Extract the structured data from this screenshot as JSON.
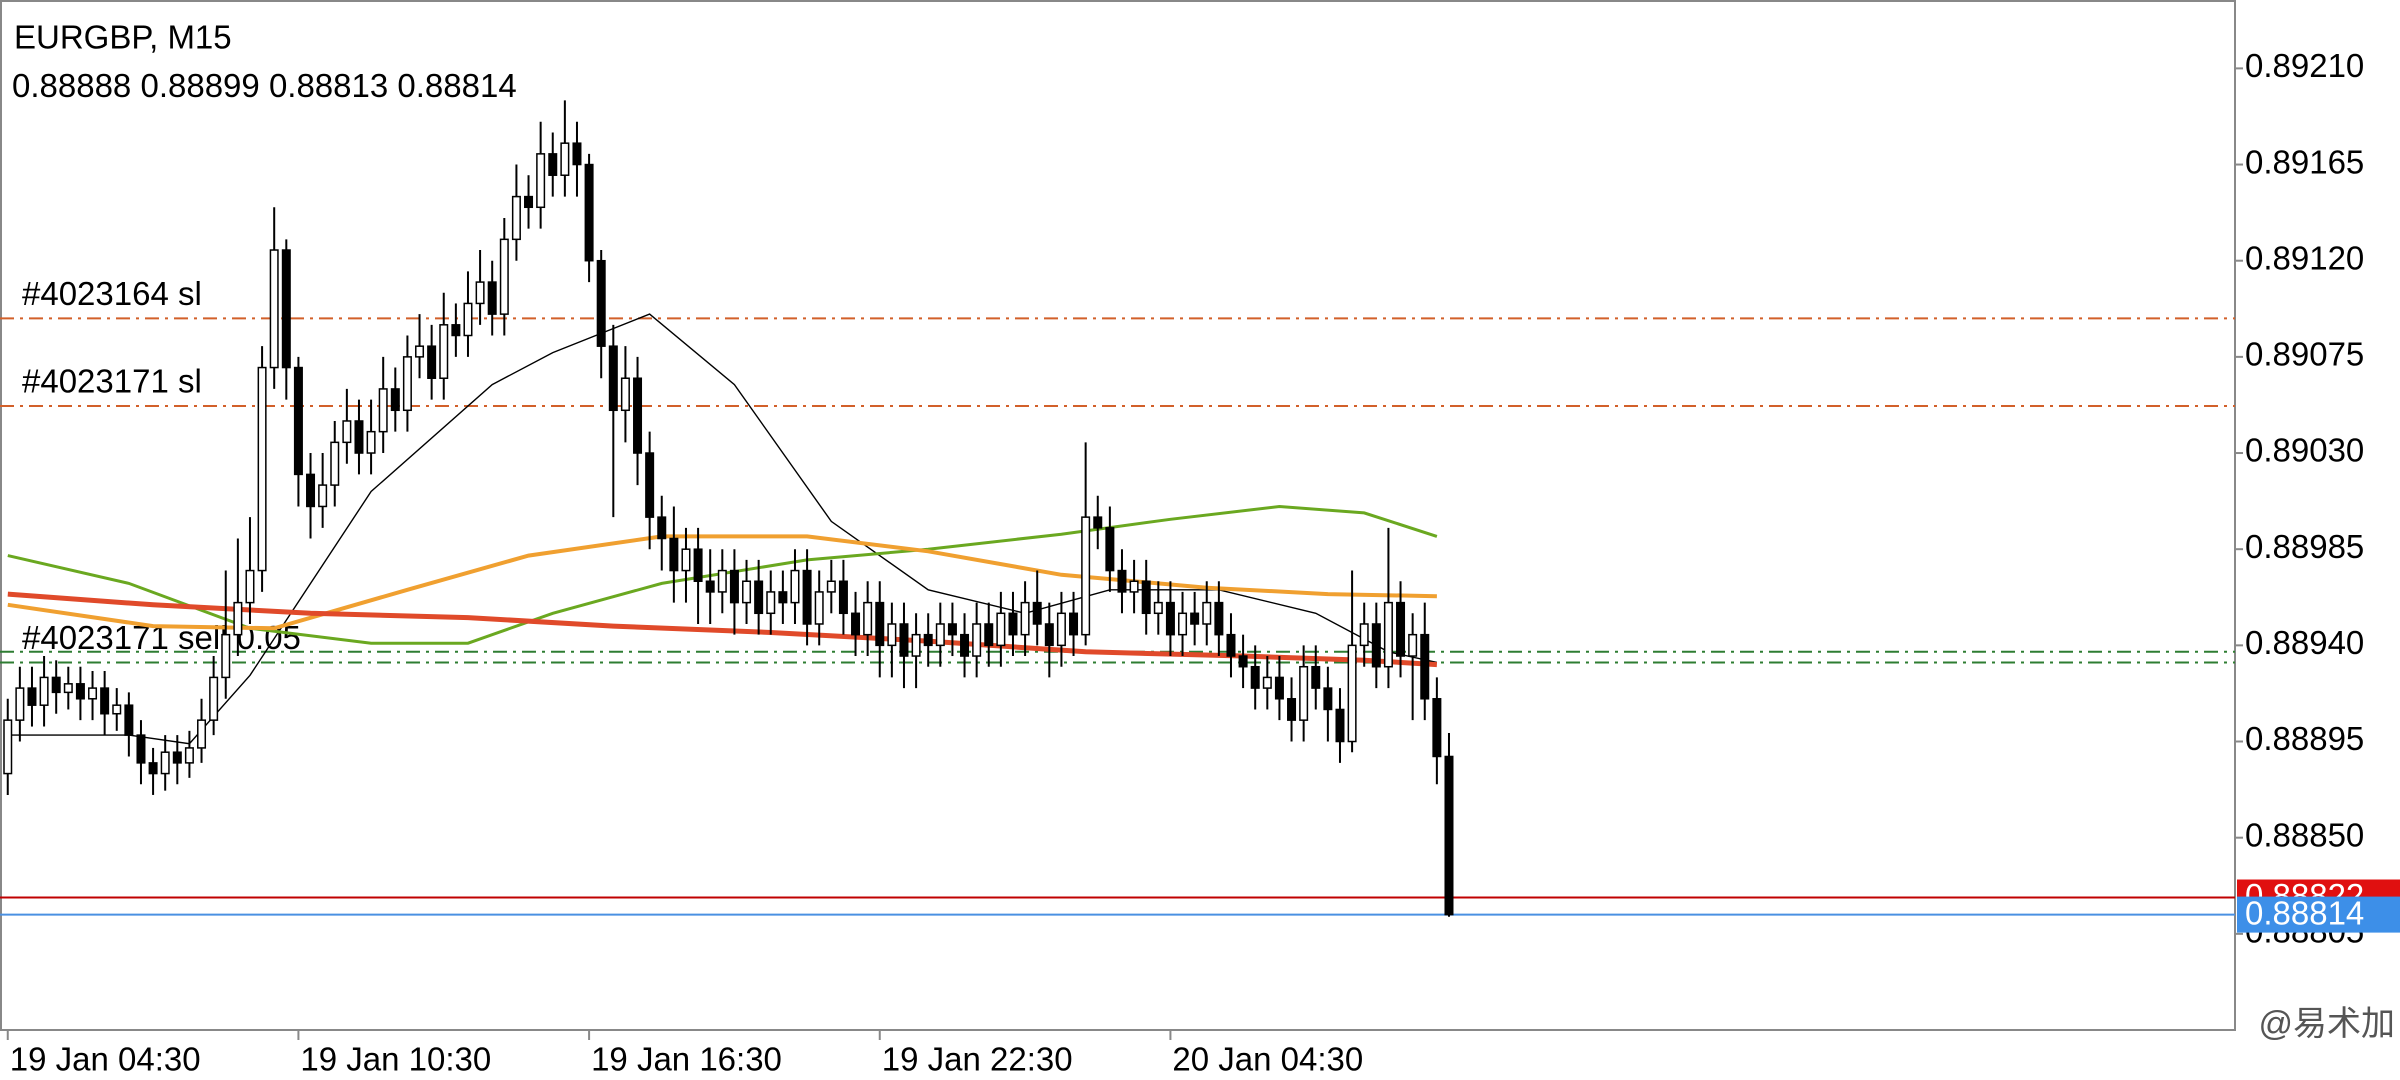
{
  "chart_data": {
    "type": "candlestick",
    "symbol": "EURGBP, M15",
    "ylim": [
      0.8876,
      0.89242
    ],
    "yticks": [
      {
        "value": 0.8921,
        "label": "0.89210"
      },
      {
        "value": 0.89165,
        "label": "0.89165"
      },
      {
        "value": 0.8912,
        "label": "0.89120"
      },
      {
        "value": 0.89075,
        "label": "0.89075"
      },
      {
        "value": 0.8903,
        "label": "0.89030"
      },
      {
        "value": 0.88985,
        "label": "0.88985"
      },
      {
        "value": 0.8894,
        "label": "0.88940"
      },
      {
        "value": 0.88895,
        "label": "0.88895"
      },
      {
        "value": 0.8885,
        "label": "0.88850"
      },
      {
        "value": 0.88805,
        "label": "0.88805"
      }
    ],
    "xlim": [
      -0.64,
      183.9
    ],
    "xticks": [
      {
        "value": 0,
        "label": "19 Jan 04:30"
      },
      {
        "value": 24,
        "label": "19 Jan 10:30"
      },
      {
        "value": 48,
        "label": "19 Jan 16:30"
      },
      {
        "value": 72,
        "label": "19 Jan 22:30"
      },
      {
        "value": 96,
        "label": "20 Jan 04:30"
      }
    ],
    "bull_color": "#ffffff",
    "bear_color": "#000000",
    "ohlc": [
      [
        0.8888,
        0.88915,
        0.8887,
        0.88905
      ],
      [
        0.88905,
        0.8893,
        0.88895,
        0.8892
      ],
      [
        0.8892,
        0.8893,
        0.88902,
        0.88912
      ],
      [
        0.88912,
        0.88935,
        0.88902,
        0.88925
      ],
      [
        0.88925,
        0.88933,
        0.88908,
        0.88918
      ],
      [
        0.88918,
        0.8893,
        0.8891,
        0.88922
      ],
      [
        0.88922,
        0.8893,
        0.88905,
        0.88915
      ],
      [
        0.88915,
        0.88928,
        0.88905,
        0.8892
      ],
      [
        0.8892,
        0.88928,
        0.88898,
        0.88908
      ],
      [
        0.88908,
        0.8892,
        0.889,
        0.88912
      ],
      [
        0.88912,
        0.88918,
        0.88888,
        0.88898
      ],
      [
        0.88898,
        0.88905,
        0.88875,
        0.88885
      ],
      [
        0.88885,
        0.88892,
        0.8887,
        0.8888
      ],
      [
        0.8888,
        0.88898,
        0.88872,
        0.8889
      ],
      [
        0.8889,
        0.88898,
        0.88875,
        0.88885
      ],
      [
        0.88885,
        0.889,
        0.88878,
        0.88892
      ],
      [
        0.88892,
        0.88915,
        0.88885,
        0.88905
      ],
      [
        0.88905,
        0.88935,
        0.88898,
        0.88925
      ],
      [
        0.88925,
        0.88975,
        0.88915,
        0.88945
      ],
      [
        0.88945,
        0.8899,
        0.88935,
        0.8896
      ],
      [
        0.8896,
        0.89,
        0.8895,
        0.88975
      ],
      [
        0.88975,
        0.8908,
        0.88965,
        0.8907
      ],
      [
        0.8907,
        0.89145,
        0.8906,
        0.89125
      ],
      [
        0.89125,
        0.8913,
        0.89055,
        0.8907
      ],
      [
        0.8907,
        0.89075,
        0.89005,
        0.8902
      ],
      [
        0.8902,
        0.8903,
        0.8899,
        0.89005
      ],
      [
        0.89005,
        0.8903,
        0.88995,
        0.89015
      ],
      [
        0.89015,
        0.89045,
        0.89005,
        0.89035
      ],
      [
        0.89035,
        0.8906,
        0.89025,
        0.89045
      ],
      [
        0.89045,
        0.89055,
        0.8902,
        0.8903
      ],
      [
        0.8903,
        0.89055,
        0.8902,
        0.8904
      ],
      [
        0.8904,
        0.89075,
        0.8903,
        0.8906
      ],
      [
        0.8906,
        0.8907,
        0.8904,
        0.8905
      ],
      [
        0.8905,
        0.89085,
        0.8904,
        0.89075
      ],
      [
        0.89075,
        0.89095,
        0.89065,
        0.8908
      ],
      [
        0.8908,
        0.8909,
        0.89055,
        0.89065
      ],
      [
        0.89065,
        0.89105,
        0.89055,
        0.8909
      ],
      [
        0.8909,
        0.891,
        0.89075,
        0.89085
      ],
      [
        0.89085,
        0.89115,
        0.89075,
        0.891
      ],
      [
        0.891,
        0.89125,
        0.8909,
        0.8911
      ],
      [
        0.8911,
        0.8912,
        0.89085,
        0.89095
      ],
      [
        0.89095,
        0.8914,
        0.89085,
        0.8913
      ],
      [
        0.8913,
        0.89165,
        0.8912,
        0.8915
      ],
      [
        0.8915,
        0.8916,
        0.89135,
        0.89145
      ],
      [
        0.89145,
        0.89185,
        0.89135,
        0.8917
      ],
      [
        0.8917,
        0.8918,
        0.8915,
        0.8916
      ],
      [
        0.8916,
        0.89195,
        0.8915,
        0.89175
      ],
      [
        0.89175,
        0.89185,
        0.8915,
        0.89165
      ],
      [
        0.89165,
        0.8917,
        0.8911,
        0.8912
      ],
      [
        0.8912,
        0.89125,
        0.89065,
        0.8908
      ],
      [
        0.8908,
        0.8909,
        0.89,
        0.8905
      ],
      [
        0.8905,
        0.8908,
        0.89035,
        0.89065
      ],
      [
        0.89065,
        0.89075,
        0.89015,
        0.8903
      ],
      [
        0.8903,
        0.8904,
        0.88985,
        0.89
      ],
      [
        0.89,
        0.8901,
        0.88975,
        0.8899
      ],
      [
        0.8899,
        0.89005,
        0.8896,
        0.88975
      ],
      [
        0.88975,
        0.88995,
        0.8896,
        0.88985
      ],
      [
        0.88985,
        0.88995,
        0.8895,
        0.8897
      ],
      [
        0.8897,
        0.88985,
        0.8895,
        0.88965
      ],
      [
        0.88965,
        0.88985,
        0.88955,
        0.88975
      ],
      [
        0.88975,
        0.88985,
        0.88945,
        0.8896
      ],
      [
        0.8896,
        0.8898,
        0.8895,
        0.8897
      ],
      [
        0.8897,
        0.8898,
        0.88945,
        0.88955
      ],
      [
        0.88955,
        0.88975,
        0.88945,
        0.88965
      ],
      [
        0.88965,
        0.88975,
        0.8895,
        0.8896
      ],
      [
        0.8896,
        0.88985,
        0.8895,
        0.88975
      ],
      [
        0.88975,
        0.88985,
        0.8894,
        0.8895
      ],
      [
        0.8895,
        0.88975,
        0.8894,
        0.88965
      ],
      [
        0.88965,
        0.8898,
        0.88955,
        0.8897
      ],
      [
        0.8897,
        0.8898,
        0.88945,
        0.88955
      ],
      [
        0.88955,
        0.88965,
        0.88935,
        0.88945
      ],
      [
        0.88945,
        0.8897,
        0.88935,
        0.8896
      ],
      [
        0.8896,
        0.8897,
        0.88925,
        0.8894
      ],
      [
        0.8894,
        0.8896,
        0.88925,
        0.8895
      ],
      [
        0.8895,
        0.8896,
        0.8892,
        0.88935
      ],
      [
        0.88935,
        0.88955,
        0.8892,
        0.88945
      ],
      [
        0.88945,
        0.88955,
        0.8893,
        0.8894
      ],
      [
        0.8894,
        0.8896,
        0.8893,
        0.8895
      ],
      [
        0.8895,
        0.8896,
        0.88935,
        0.88945
      ],
      [
        0.88945,
        0.88955,
        0.88925,
        0.88935
      ],
      [
        0.88935,
        0.8896,
        0.88925,
        0.8895
      ],
      [
        0.8895,
        0.8896,
        0.8893,
        0.8894
      ],
      [
        0.8894,
        0.88965,
        0.8893,
        0.88955
      ],
      [
        0.88955,
        0.88965,
        0.88935,
        0.88945
      ],
      [
        0.88945,
        0.8897,
        0.88935,
        0.8896
      ],
      [
        0.8896,
        0.88975,
        0.8894,
        0.8895
      ],
      [
        0.8895,
        0.8896,
        0.88925,
        0.8894
      ],
      [
        0.8894,
        0.88965,
        0.8893,
        0.88955
      ],
      [
        0.88955,
        0.88965,
        0.88935,
        0.88945
      ],
      [
        0.88945,
        0.89035,
        0.8894,
        0.89
      ],
      [
        0.89,
        0.8901,
        0.88985,
        0.88995
      ],
      [
        0.88995,
        0.89005,
        0.88965,
        0.88975
      ],
      [
        0.88975,
        0.88985,
        0.88955,
        0.88965
      ],
      [
        0.88965,
        0.8898,
        0.88955,
        0.8897
      ],
      [
        0.8897,
        0.8898,
        0.88945,
        0.88955
      ],
      [
        0.88955,
        0.8897,
        0.88945,
        0.8896
      ],
      [
        0.8896,
        0.8897,
        0.88935,
        0.88945
      ],
      [
        0.88945,
        0.88965,
        0.88935,
        0.88955
      ],
      [
        0.88955,
        0.88965,
        0.8894,
        0.8895
      ],
      [
        0.8895,
        0.8897,
        0.8894,
        0.8896
      ],
      [
        0.8896,
        0.8897,
        0.88935,
        0.88945
      ],
      [
        0.88945,
        0.88955,
        0.88925,
        0.88935
      ],
      [
        0.88935,
        0.88945,
        0.8892,
        0.8893
      ],
      [
        0.8893,
        0.8894,
        0.8891,
        0.8892
      ],
      [
        0.8892,
        0.88935,
        0.8891,
        0.88925
      ],
      [
        0.88925,
        0.88935,
        0.88905,
        0.88915
      ],
      [
        0.88915,
        0.88925,
        0.88895,
        0.88905
      ],
      [
        0.88905,
        0.8894,
        0.88895,
        0.8893
      ],
      [
        0.8893,
        0.8894,
        0.8891,
        0.8892
      ],
      [
        0.8892,
        0.8893,
        0.88895,
        0.8891
      ],
      [
        0.8891,
        0.8892,
        0.88885,
        0.88895
      ],
      [
        0.88895,
        0.88975,
        0.8889,
        0.8894
      ],
      [
        0.8894,
        0.8896,
        0.8893,
        0.8895
      ],
      [
        0.8895,
        0.8896,
        0.8892,
        0.8893
      ],
      [
        0.8893,
        0.88995,
        0.8892,
        0.8896
      ],
      [
        0.8896,
        0.8897,
        0.88925,
        0.88935
      ],
      [
        0.88935,
        0.88955,
        0.88905,
        0.88945
      ],
      [
        0.88945,
        0.8896,
        0.88905,
        0.88915
      ],
      [
        0.88915,
        0.88925,
        0.88875,
        0.88888
      ],
      [
        0.88888,
        0.88899,
        0.88813,
        0.88814
      ]
    ],
    "moving_averages": [
      {
        "color": "#000000",
        "width": 1.4,
        "x": [
          0,
          10,
          15,
          20,
          30,
          40,
          45,
          53,
          60,
          68,
          76,
          84,
          91,
          100,
          108,
          114,
          118
        ],
        "values": [
          0.88898,
          0.88898,
          0.88894,
          0.88926,
          0.89012,
          0.89062,
          0.89077,
          0.89095,
          0.89062,
          0.88998,
          0.88966,
          0.88955,
          0.88966,
          0.88966,
          0.88955,
          0.88937,
          0.88932
        ]
      },
      {
        "color": "#6aa820",
        "width": 3,
        "x": [
          0,
          10,
          20,
          30,
          38,
          45,
          54,
          66,
          76,
          87,
          96,
          105,
          112,
          118
        ],
        "values": [
          0.88982,
          0.88969,
          0.88948,
          0.88941,
          0.88941,
          0.88955,
          0.88969,
          0.8898,
          0.88985,
          0.88992,
          0.88999,
          0.89005,
          0.89002,
          0.88991
        ]
      },
      {
        "color": "#f0a030",
        "width": 4,
        "x": [
          0,
          12,
          22,
          33,
          43,
          54,
          66,
          76,
          87,
          99,
          109,
          118
        ],
        "values": [
          0.88959,
          0.88949,
          0.88948,
          0.88966,
          0.88982,
          0.88991,
          0.88991,
          0.88984,
          0.88973,
          0.88967,
          0.88964,
          0.88963
        ]
      },
      {
        "color": "#e04a2a",
        "width": 5,
        "x": [
          0,
          12,
          25,
          38,
          50,
          63,
          76,
          89,
          102,
          112,
          118
        ],
        "values": [
          0.88964,
          0.88959,
          0.88955,
          0.88953,
          0.88949,
          0.88946,
          0.88942,
          0.88937,
          0.88935,
          0.88933,
          0.88931
        ]
      }
    ],
    "levels": [
      {
        "label": "#4023164 sl",
        "value": 0.89093,
        "color": "#d2602a",
        "style": "dashdot"
      },
      {
        "label": "#4023171 sl",
        "value": 0.89052,
        "color": "#d2602a",
        "style": "dashdot"
      },
      {
        "value": 0.88937,
        "color": "#2e7d32",
        "style": "dashdot"
      },
      {
        "label": "#4023171 sell 0.05",
        "value": 0.88932,
        "color": "#2e7d32",
        "style": "dashdot"
      },
      {
        "value": 0.88822,
        "color": "#c00000",
        "style": "solid",
        "badge": "#e01010"
      },
      {
        "value": 0.88814,
        "color": "#4a90e2",
        "style": "solid",
        "badge": "#3d8fe8"
      }
    ],
    "watermark": "@易术加"
  }
}
